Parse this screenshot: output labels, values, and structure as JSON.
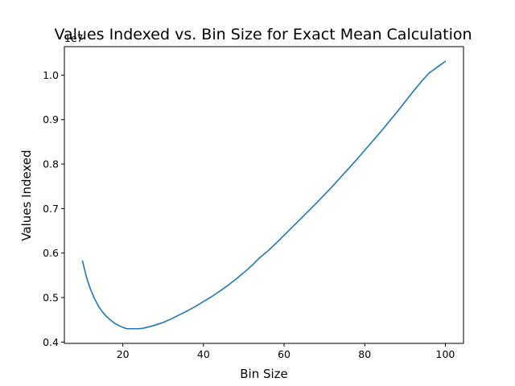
{
  "chart_data": {
    "type": "line",
    "title": "Values Indexed vs. Bin Size for Exact Mean Calculation",
    "xlabel": "Bin Size",
    "ylabel": "Values Indexed",
    "y_offset_label": "1e7",
    "xlim": [
      5.5,
      104.5
    ],
    "ylim": [
      0.397,
      1.064
    ],
    "xticks": [
      {
        "value": 20,
        "label": "20"
      },
      {
        "value": 40,
        "label": "40"
      },
      {
        "value": 60,
        "label": "60"
      },
      {
        "value": 80,
        "label": "80"
      },
      {
        "value": 100,
        "label": "100"
      }
    ],
    "yticks": [
      {
        "value": 0.4,
        "label": "0.4"
      },
      {
        "value": 0.5,
        "label": "0.5"
      },
      {
        "value": 0.6,
        "label": "0.6"
      },
      {
        "value": 0.7,
        "label": "0.7"
      },
      {
        "value": 0.8,
        "label": "0.8"
      },
      {
        "value": 0.9,
        "label": "0.9"
      },
      {
        "value": 1.0,
        "label": "1.0"
      }
    ],
    "grid": false,
    "series": [
      {
        "color": "#1f77b4",
        "x": [
          10,
          11,
          12,
          13,
          14,
          15,
          16,
          17,
          18,
          19,
          20,
          21,
          22,
          23,
          24,
          25,
          26,
          28,
          30,
          32,
          34,
          36,
          38,
          40,
          42,
          44,
          46,
          48,
          50,
          52,
          54,
          56,
          58,
          60,
          62,
          64,
          66,
          68,
          70,
          72,
          74,
          76,
          78,
          80,
          82,
          84,
          86,
          88,
          90,
          92,
          94,
          96,
          98,
          100
        ],
        "y": [
          0.582,
          0.545,
          0.518,
          0.497,
          0.48,
          0.467,
          0.457,
          0.449,
          0.442,
          0.437,
          0.433,
          0.43,
          0.43,
          0.43,
          0.43,
          0.431,
          0.433,
          0.438,
          0.444,
          0.452,
          0.461,
          0.47,
          0.48,
          0.491,
          0.502,
          0.514,
          0.527,
          0.541,
          0.556,
          0.572,
          0.59,
          0.605,
          0.622,
          0.64,
          0.658,
          0.676,
          0.694,
          0.712,
          0.731,
          0.75,
          0.77,
          0.79,
          0.81,
          0.831,
          0.852,
          0.873,
          0.895,
          0.917,
          0.94,
          0.963,
          0.985,
          1.005,
          1.018,
          1.031
        ]
      }
    ]
  }
}
